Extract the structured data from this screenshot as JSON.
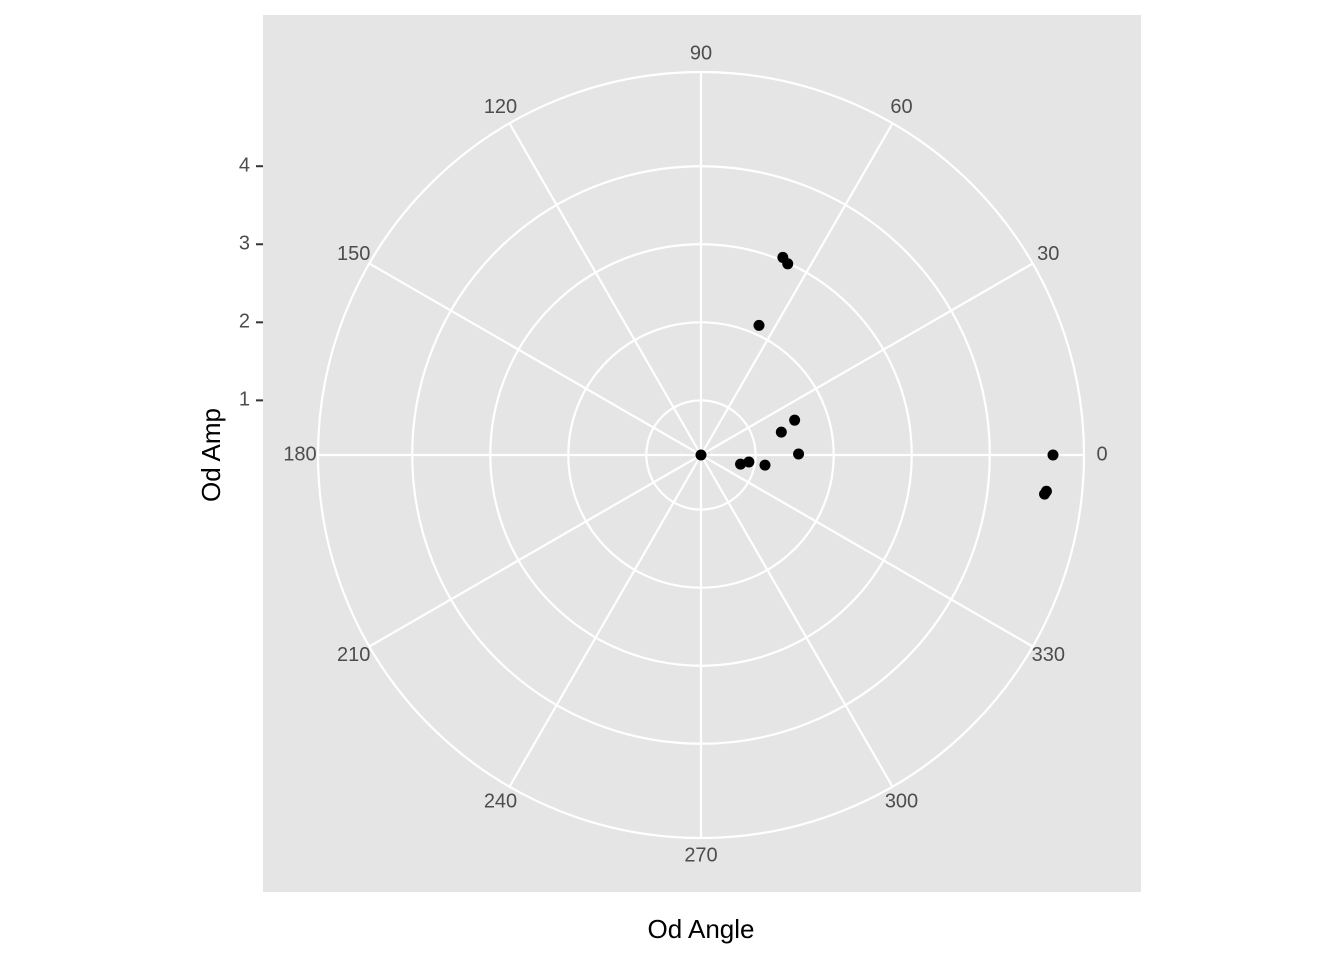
{
  "chart_data": {
    "type": "scatter",
    "polar": true,
    "x_label": "Od Angle",
    "y_label": "Od Amp",
    "x": [
      0,
      353.5,
      354,
      67.5,
      65.6,
      65.9,
      20.4,
      15.9,
      0.6,
      351,
      351.7,
      347,
      0
    ],
    "values": [
      4.81,
      4.73,
      4.75,
      3.04,
      2.99,
      2.12,
      1.58,
      1.37,
      1.55,
      1.13,
      0.92,
      0.82,
      0.3
    ],
    "color": "#000000",
    "xlim": [
      0,
      360
    ],
    "xticks": [
      0,
      30,
      60,
      90,
      120,
      150,
      180,
      210,
      240,
      270,
      300,
      330
    ],
    "ylim": [
      0.3,
      4.81
    ],
    "yticks": [
      1,
      2,
      3,
      4
    ],
    "grid": true
  }
}
